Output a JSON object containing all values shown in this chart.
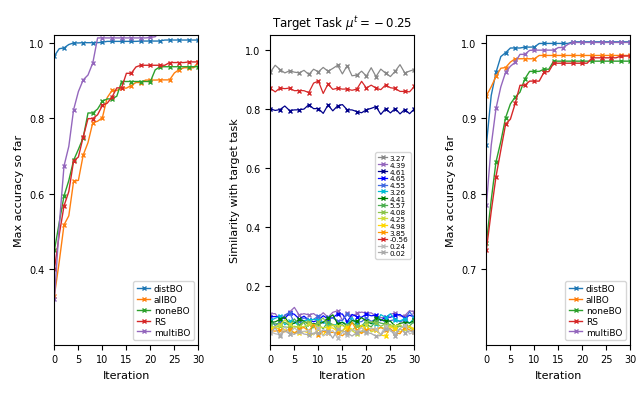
{
  "title_middle": "Target Task $\\mu^t = -0.25$",
  "ylabel_left": "Max accuracy so far",
  "ylabel_middle": "Similarity with target task",
  "ylabel_right": "Max accuracy so far",
  "xlabel": "Iteration",
  "left_ylim": [
    0.2,
    1.02
  ],
  "middle_ylim": [
    0.0,
    1.05
  ],
  "right_ylim": [
    0.6,
    1.01
  ],
  "legend_entries": [
    "distBO",
    "allBO",
    "noneBO",
    "RS",
    "multiBO"
  ],
  "legend_colors": [
    "#1f77b4",
    "#ff7f0e",
    "#2ca02c",
    "#d62728",
    "#9467bd"
  ],
  "middle_legend_labels": [
    "3.27",
    "4.39",
    "4.61",
    "4.65",
    "4.55",
    "3.26",
    "4.41",
    "5.57",
    "4.08",
    "4.25",
    "4.98",
    "3.85",
    "-0.56",
    "0.24",
    "0.02"
  ],
  "middle_legend_colors": [
    "#888888",
    "#9467bd",
    "#00008b",
    "#0000ff",
    "#4169e1",
    "#00bcd4",
    "#008000",
    "#4caf50",
    "#8bc34a",
    "#cddc39",
    "#ffd700",
    "#ff9800",
    "#d62728",
    "#bbbbbb",
    "#aaaaaa"
  ],
  "middle_high_levels": [
    0.925,
    0.87,
    0.8
  ],
  "middle_high_indices": [
    0,
    12,
    2
  ],
  "middle_low_base": 0.07,
  "left_yticks": [
    0.4,
    0.6,
    0.8,
    1.0
  ],
  "right_yticks": [
    0.7,
    0.8,
    0.9,
    1.0
  ],
  "middle_yticks": [
    0.2,
    0.4,
    0.6,
    0.8,
    1.0
  ]
}
